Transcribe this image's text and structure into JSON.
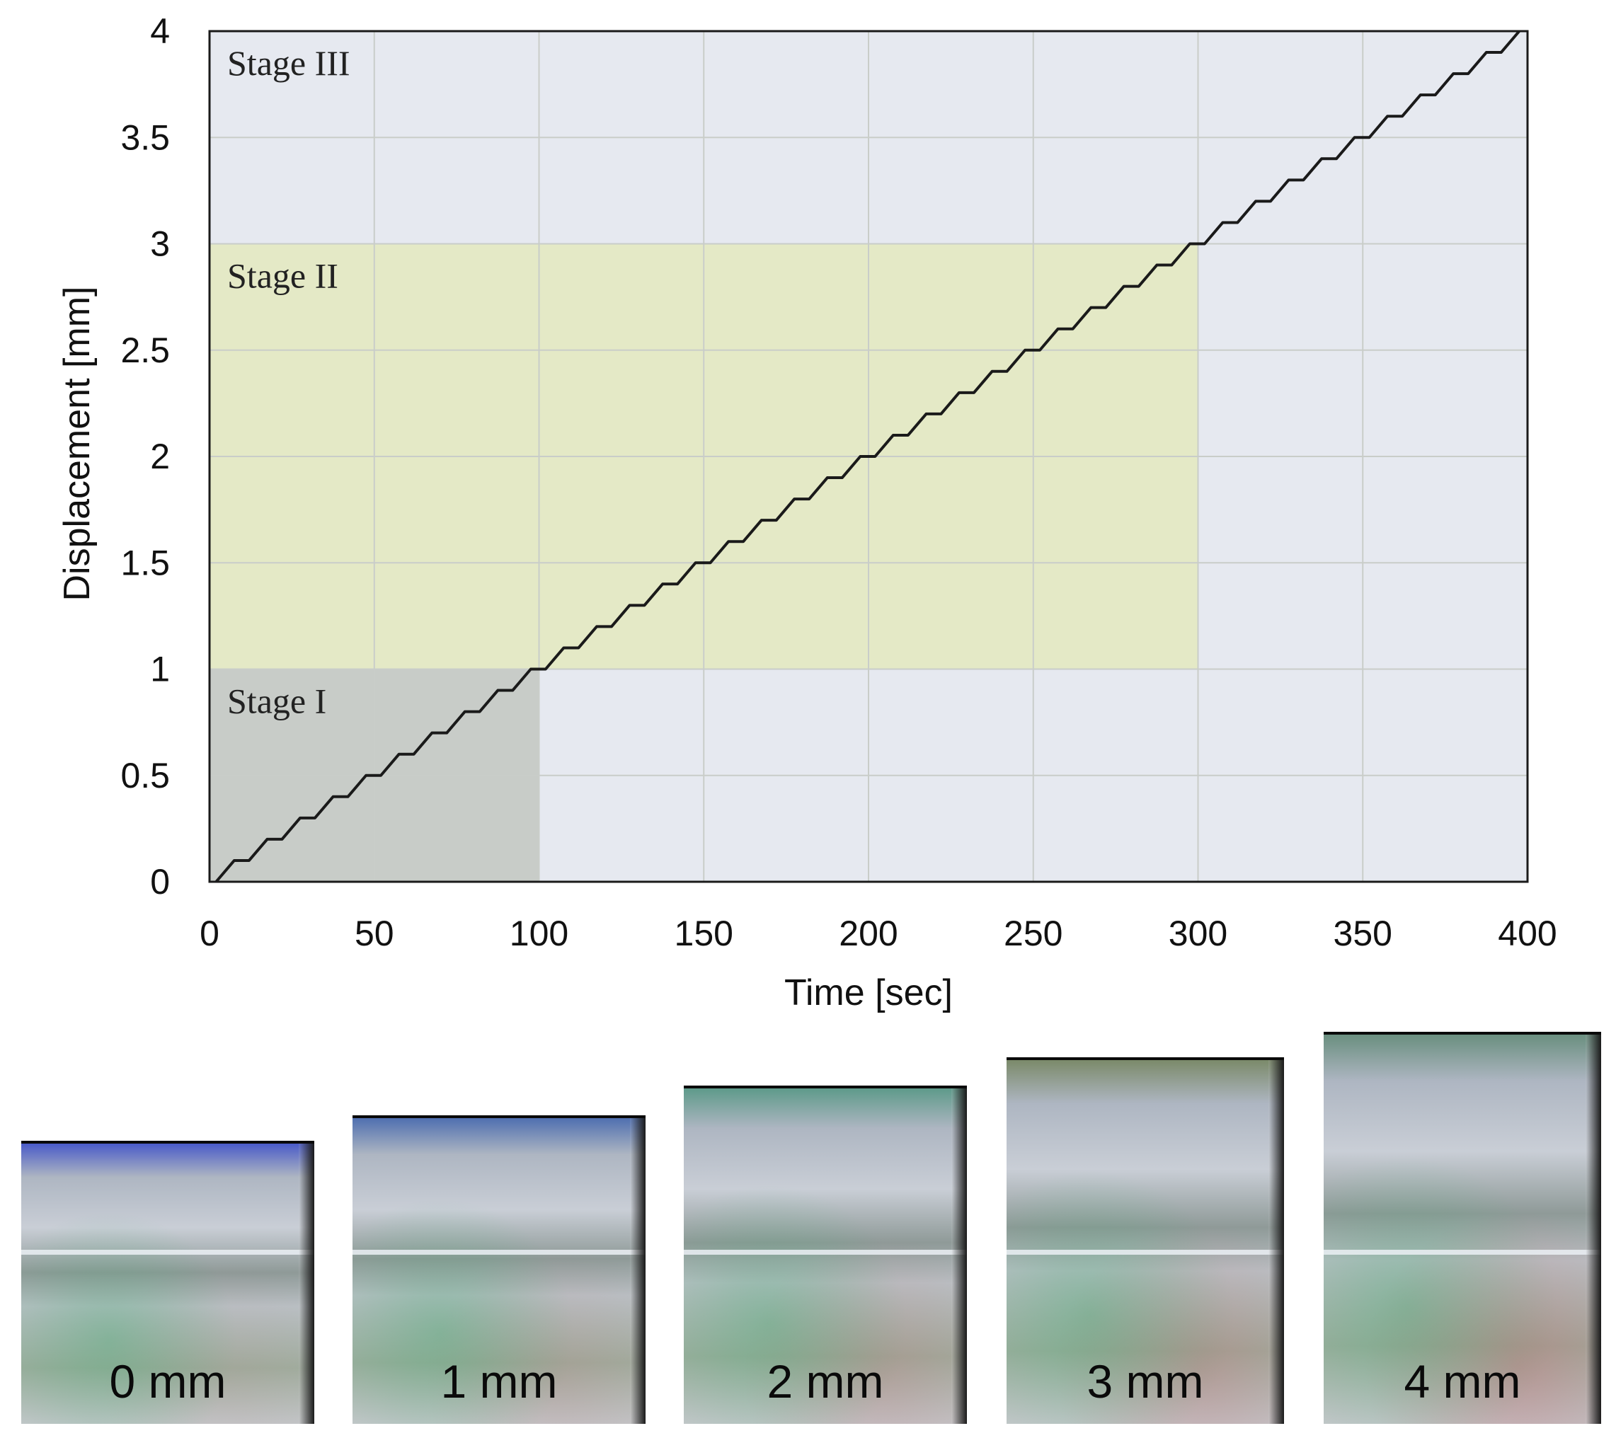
{
  "chart_data": {
    "type": "line",
    "xlabel": "Time [sec]",
    "ylabel": "Displacement [mm]",
    "xlim": [
      0,
      400
    ],
    "ylim": [
      0,
      4
    ],
    "xticks": [
      0,
      50,
      100,
      150,
      200,
      250,
      300,
      350,
      400
    ],
    "yticks": [
      0,
      0.5,
      1,
      1.5,
      2,
      2.5,
      3,
      3.5,
      4
    ],
    "xtick_labels": [
      "0",
      "50",
      "100",
      "150",
      "200",
      "250",
      "300",
      "350",
      "400"
    ],
    "ytick_labels": [
      "0",
      "0.5",
      "1",
      "1.5",
      "2",
      "2.5",
      "3",
      "3.5",
      "4"
    ],
    "grid": true,
    "stages": [
      {
        "label": "Stage I",
        "x": [
          0,
          100
        ],
        "y": [
          0,
          1
        ],
        "color": "#c8ccc8"
      },
      {
        "label": "Stage II",
        "x": [
          0,
          300
        ],
        "y": [
          1,
          3
        ],
        "color": "#e4e9c6"
      },
      {
        "label": "Stage III",
        "x": [
          0,
          400
        ],
        "y": [
          3,
          4
        ],
        "color": "#e6e9f0"
      }
    ],
    "series": [
      {
        "type": "staircase",
        "color": "#1a1a1a",
        "step_interval_sec": 10,
        "step_size_mm": 0.1,
        "x": [
          0,
          400
        ],
        "y": [
          0,
          4
        ]
      }
    ],
    "background_color": "#e6e9f0"
  },
  "photos": [
    {
      "label": "0 mm",
      "tint": "#4a5bc8"
    },
    {
      "label": "1 mm",
      "tint": "#4f6fb0"
    },
    {
      "label": "2 mm",
      "tint": "#5e9a8a"
    },
    {
      "label": "3 mm",
      "tint": "#7b8a6a"
    },
    {
      "label": "4 mm",
      "tint": "#6a8f7f"
    }
  ]
}
